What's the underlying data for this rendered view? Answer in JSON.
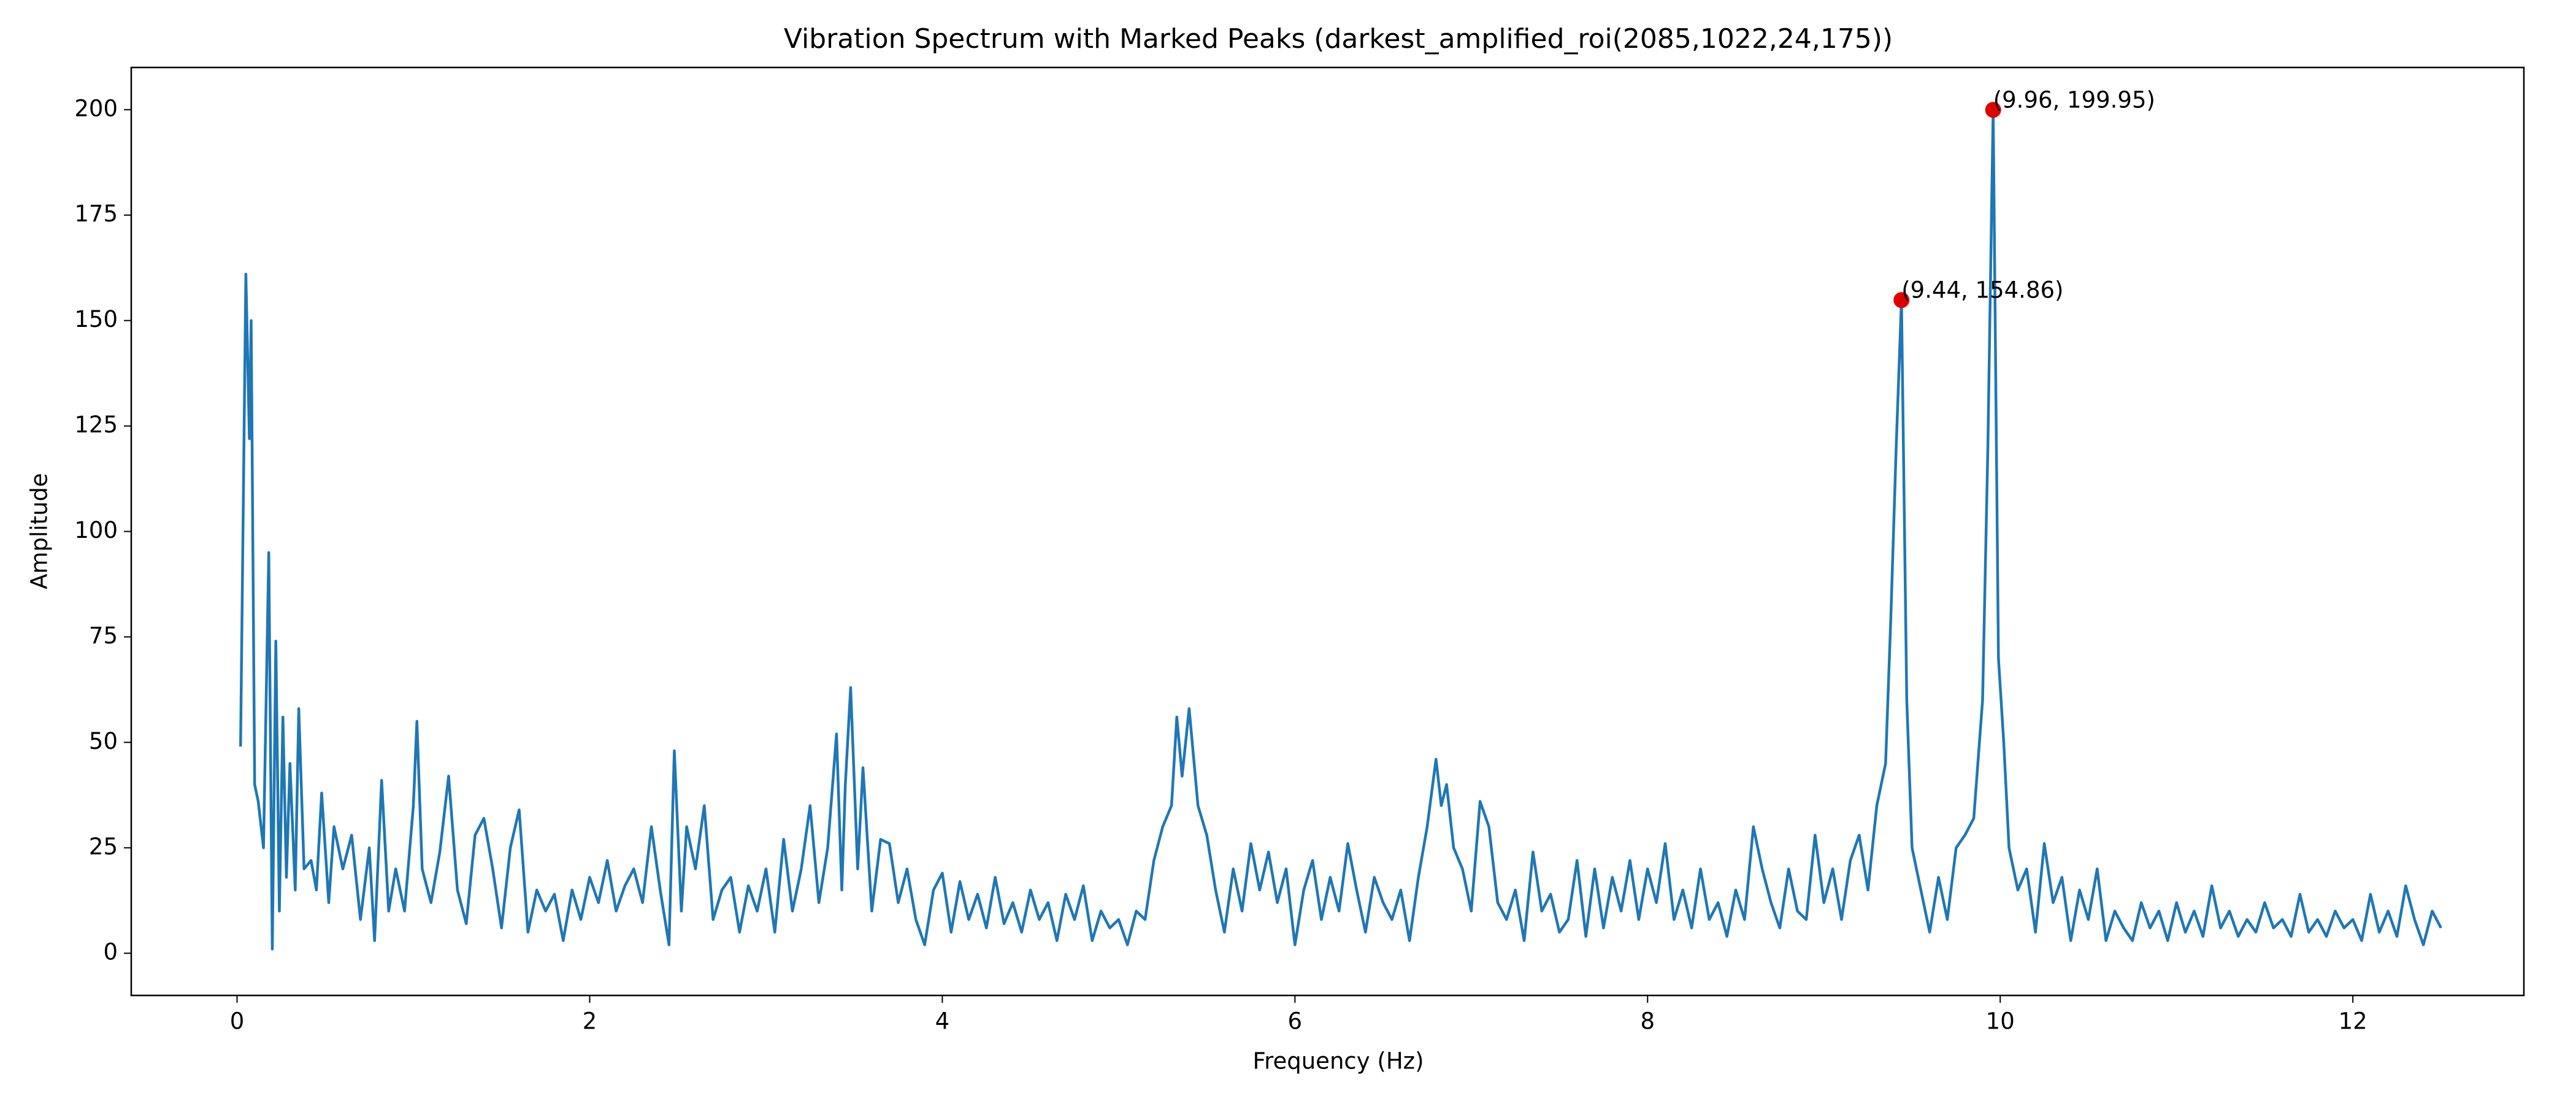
{
  "chart_data": {
    "type": "line",
    "title": "Vibration Spectrum with Marked Peaks (darkest_amplified_roi(2085,1022,24,175))",
    "x_label": "Frequency (Hz)",
    "y_label": "Amplitude",
    "xlim": [
      -0.6,
      12.97
    ],
    "ylim": [
      -10,
      210
    ],
    "xticks": [
      0,
      2,
      4,
      6,
      8,
      10,
      12
    ],
    "yticks": [
      0,
      25,
      50,
      75,
      100,
      125,
      150,
      175,
      200
    ],
    "line": {
      "color": "#1f77b4",
      "x": [
        0.02,
        0.05,
        0.07,
        0.08,
        0.1,
        0.12,
        0.15,
        0.18,
        0.2,
        0.22,
        0.24,
        0.26,
        0.28,
        0.3,
        0.33,
        0.35,
        0.38,
        0.42,
        0.45,
        0.48,
        0.52,
        0.55,
        0.6,
        0.65,
        0.7,
        0.75,
        0.78,
        0.82,
        0.86,
        0.9,
        0.95,
        1.0,
        1.02,
        1.05,
        1.1,
        1.15,
        1.2,
        1.25,
        1.3,
        1.35,
        1.4,
        1.45,
        1.5,
        1.55,
        1.6,
        1.65,
        1.7,
        1.75,
        1.8,
        1.85,
        1.9,
        1.95,
        2.0,
        2.05,
        2.1,
        2.15,
        2.2,
        2.25,
        2.3,
        2.35,
        2.4,
        2.45,
        2.48,
        2.52,
        2.55,
        2.6,
        2.65,
        2.7,
        2.75,
        2.8,
        2.85,
        2.9,
        2.95,
        3.0,
        3.05,
        3.1,
        3.15,
        3.2,
        3.25,
        3.3,
        3.35,
        3.4,
        3.43,
        3.45,
        3.48,
        3.52,
        3.55,
        3.6,
        3.65,
        3.7,
        3.75,
        3.8,
        3.85,
        3.9,
        3.95,
        4.0,
        4.05,
        4.1,
        4.15,
        4.2,
        4.25,
        4.3,
        4.35,
        4.4,
        4.45,
        4.5,
        4.55,
        4.6,
        4.65,
        4.7,
        4.75,
        4.8,
        4.85,
        4.9,
        4.95,
        5.0,
        5.05,
        5.1,
        5.15,
        5.2,
        5.25,
        5.3,
        5.33,
        5.36,
        5.4,
        5.45,
        5.5,
        5.55,
        5.6,
        5.65,
        5.7,
        5.75,
        5.8,
        5.85,
        5.9,
        5.95,
        6.0,
        6.05,
        6.1,
        6.15,
        6.2,
        6.25,
        6.3,
        6.35,
        6.4,
        6.45,
        6.5,
        6.55,
        6.6,
        6.65,
        6.7,
        6.75,
        6.8,
        6.83,
        6.86,
        6.9,
        6.95,
        7.0,
        7.05,
        7.1,
        7.15,
        7.2,
        7.25,
        7.3,
        7.35,
        7.4,
        7.45,
        7.5,
        7.55,
        7.6,
        7.65,
        7.7,
        7.75,
        7.8,
        7.85,
        7.9,
        7.95,
        8.0,
        8.05,
        8.1,
        8.15,
        8.2,
        8.25,
        8.3,
        8.35,
        8.4,
        8.45,
        8.5,
        8.55,
        8.6,
        8.65,
        8.7,
        8.75,
        8.8,
        8.85,
        8.9,
        8.95,
        9.0,
        9.05,
        9.1,
        9.15,
        9.2,
        9.25,
        9.3,
        9.35,
        9.38,
        9.41,
        9.44,
        9.47,
        9.5,
        9.55,
        9.6,
        9.65,
        9.7,
        9.75,
        9.8,
        9.85,
        9.9,
        9.93,
        9.96,
        9.99,
        10.02,
        10.05,
        10.1,
        10.15,
        10.2,
        10.25,
        10.3,
        10.35,
        10.4,
        10.45,
        10.5,
        10.55,
        10.6,
        10.65,
        10.7,
        10.75,
        10.8,
        10.85,
        10.9,
        10.95,
        11.0,
        11.05,
        11.1,
        11.15,
        11.2,
        11.25,
        11.3,
        11.35,
        11.4,
        11.45,
        11.5,
        11.55,
        11.6,
        11.65,
        11.7,
        11.75,
        11.8,
        11.85,
        11.9,
        11.95,
        12.0,
        12.05,
        12.1,
        12.15,
        12.2,
        12.25,
        12.3,
        12.35,
        12.4,
        12.45,
        12.5
      ],
      "values": [
        49,
        161,
        122,
        150,
        40,
        36,
        25,
        95,
        1,
        74,
        10,
        56,
        18,
        45,
        15,
        58,
        20,
        22,
        15,
        38,
        12,
        30,
        20,
        28,
        8,
        25,
        3,
        41,
        10,
        20,
        10,
        35,
        55,
        20,
        12,
        24,
        42,
        15,
        7,
        28,
        32,
        20,
        6,
        25,
        34,
        5,
        15,
        10,
        14,
        3,
        15,
        8,
        18,
        12,
        22,
        10,
        16,
        20,
        12,
        30,
        15,
        2,
        48,
        10,
        30,
        20,
        35,
        8,
        15,
        18,
        5,
        16,
        10,
        20,
        5,
        27,
        10,
        20,
        35,
        12,
        25,
        52,
        15,
        40,
        63,
        20,
        44,
        10,
        27,
        26,
        12,
        20,
        8,
        2,
        15,
        19,
        5,
        17,
        8,
        14,
        6,
        18,
        7,
        12,
        5,
        15,
        8,
        12,
        3,
        14,
        8,
        16,
        3,
        10,
        6,
        8,
        2,
        10,
        8,
        22,
        30,
        35,
        56,
        42,
        58,
        35,
        28,
        15,
        5,
        20,
        10,
        26,
        15,
        24,
        12,
        20,
        2,
        15,
        22,
        8,
        18,
        10,
        26,
        15,
        5,
        18,
        12,
        8,
        15,
        3,
        18,
        30,
        46,
        35,
        40,
        25,
        20,
        10,
        36,
        30,
        12,
        8,
        15,
        3,
        24,
        10,
        14,
        5,
        8,
        22,
        4,
        20,
        6,
        18,
        10,
        22,
        8,
        20,
        12,
        26,
        8,
        15,
        6,
        20,
        8,
        12,
        4,
        15,
        8,
        30,
        20,
        12,
        6,
        20,
        10,
        8,
        28,
        12,
        20,
        8,
        22,
        28,
        15,
        35,
        45,
        80,
        120,
        154.86,
        60,
        25,
        15,
        5,
        18,
        8,
        25,
        28,
        32,
        60,
        120,
        199.95,
        70,
        50,
        25,
        15,
        20,
        5,
        26,
        12,
        18,
        3,
        15,
        8,
        20,
        3,
        10,
        6,
        3,
        12,
        6,
        10,
        3,
        12,
        5,
        10,
        4,
        16,
        6,
        10,
        4,
        8,
        5,
        12,
        6,
        8,
        4,
        14,
        5,
        8,
        4,
        10,
        6,
        8,
        3,
        14,
        5,
        10,
        4,
        16,
        8,
        2,
        10,
        6
      ]
    },
    "peaks": {
      "color": "#e00000",
      "x": [
        9.44,
        9.96
      ],
      "values": [
        154.86,
        199.95
      ],
      "value_labels": [
        "(9.44, 154.86)",
        "(9.96, 199.95)"
      ]
    }
  }
}
